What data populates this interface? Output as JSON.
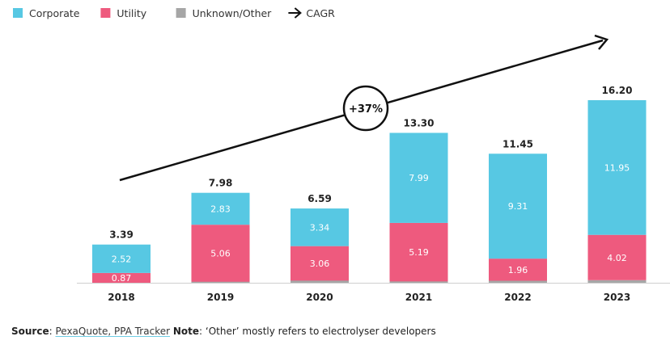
{
  "chart_data": {
    "type": "bar",
    "stacked": true,
    "categories": [
      "2018",
      "2019",
      "2020",
      "2021",
      "2022",
      "2023"
    ],
    "series": [
      {
        "name": "Unknown/Other",
        "color": "#a6a6a6",
        "values": [
          0.0,
          0.09,
          0.19,
          0.12,
          0.18,
          0.23
        ]
      },
      {
        "name": "Utility",
        "color": "#ee5a7e",
        "values": [
          0.87,
          5.06,
          3.06,
          5.19,
          1.96,
          4.02
        ]
      },
      {
        "name": "Corporate",
        "color": "#57c8e3",
        "values": [
          2.52,
          2.83,
          3.34,
          7.99,
          9.31,
          11.95
        ]
      }
    ],
    "segment_labels": {
      "Utility": [
        "0.87",
        "5.06",
        "3.06",
        "5.19",
        "1.96",
        "4.02"
      ],
      "Corporate": [
        "2.52",
        "2.83",
        "3.34",
        "7.99",
        "9.31",
        "11.95"
      ]
    },
    "totals": [
      "3.39",
      "7.98",
      "6.59",
      "13.30",
      "11.45",
      "16.20"
    ],
    "ylim": [
      0,
      17
    ],
    "grid": false,
    "legend_position": "top-left",
    "legend": [
      {
        "label": "Corporate",
        "color": "#57c8e3",
        "kind": "swatch"
      },
      {
        "label": "Utility",
        "color": "#ee5a7e",
        "kind": "swatch"
      },
      {
        "label": "Unknown/Other",
        "color": "#a6a6a6",
        "kind": "swatch"
      },
      {
        "label": "CAGR",
        "kind": "arrow"
      }
    ],
    "cagr_label": "+37%"
  },
  "footer": {
    "source_label": "Source",
    "source_text": "PexaQuote, PPA Tracker",
    "note_label": "Note",
    "note_text": ": ‘Other’ mostly refers to electrolyser developers"
  }
}
